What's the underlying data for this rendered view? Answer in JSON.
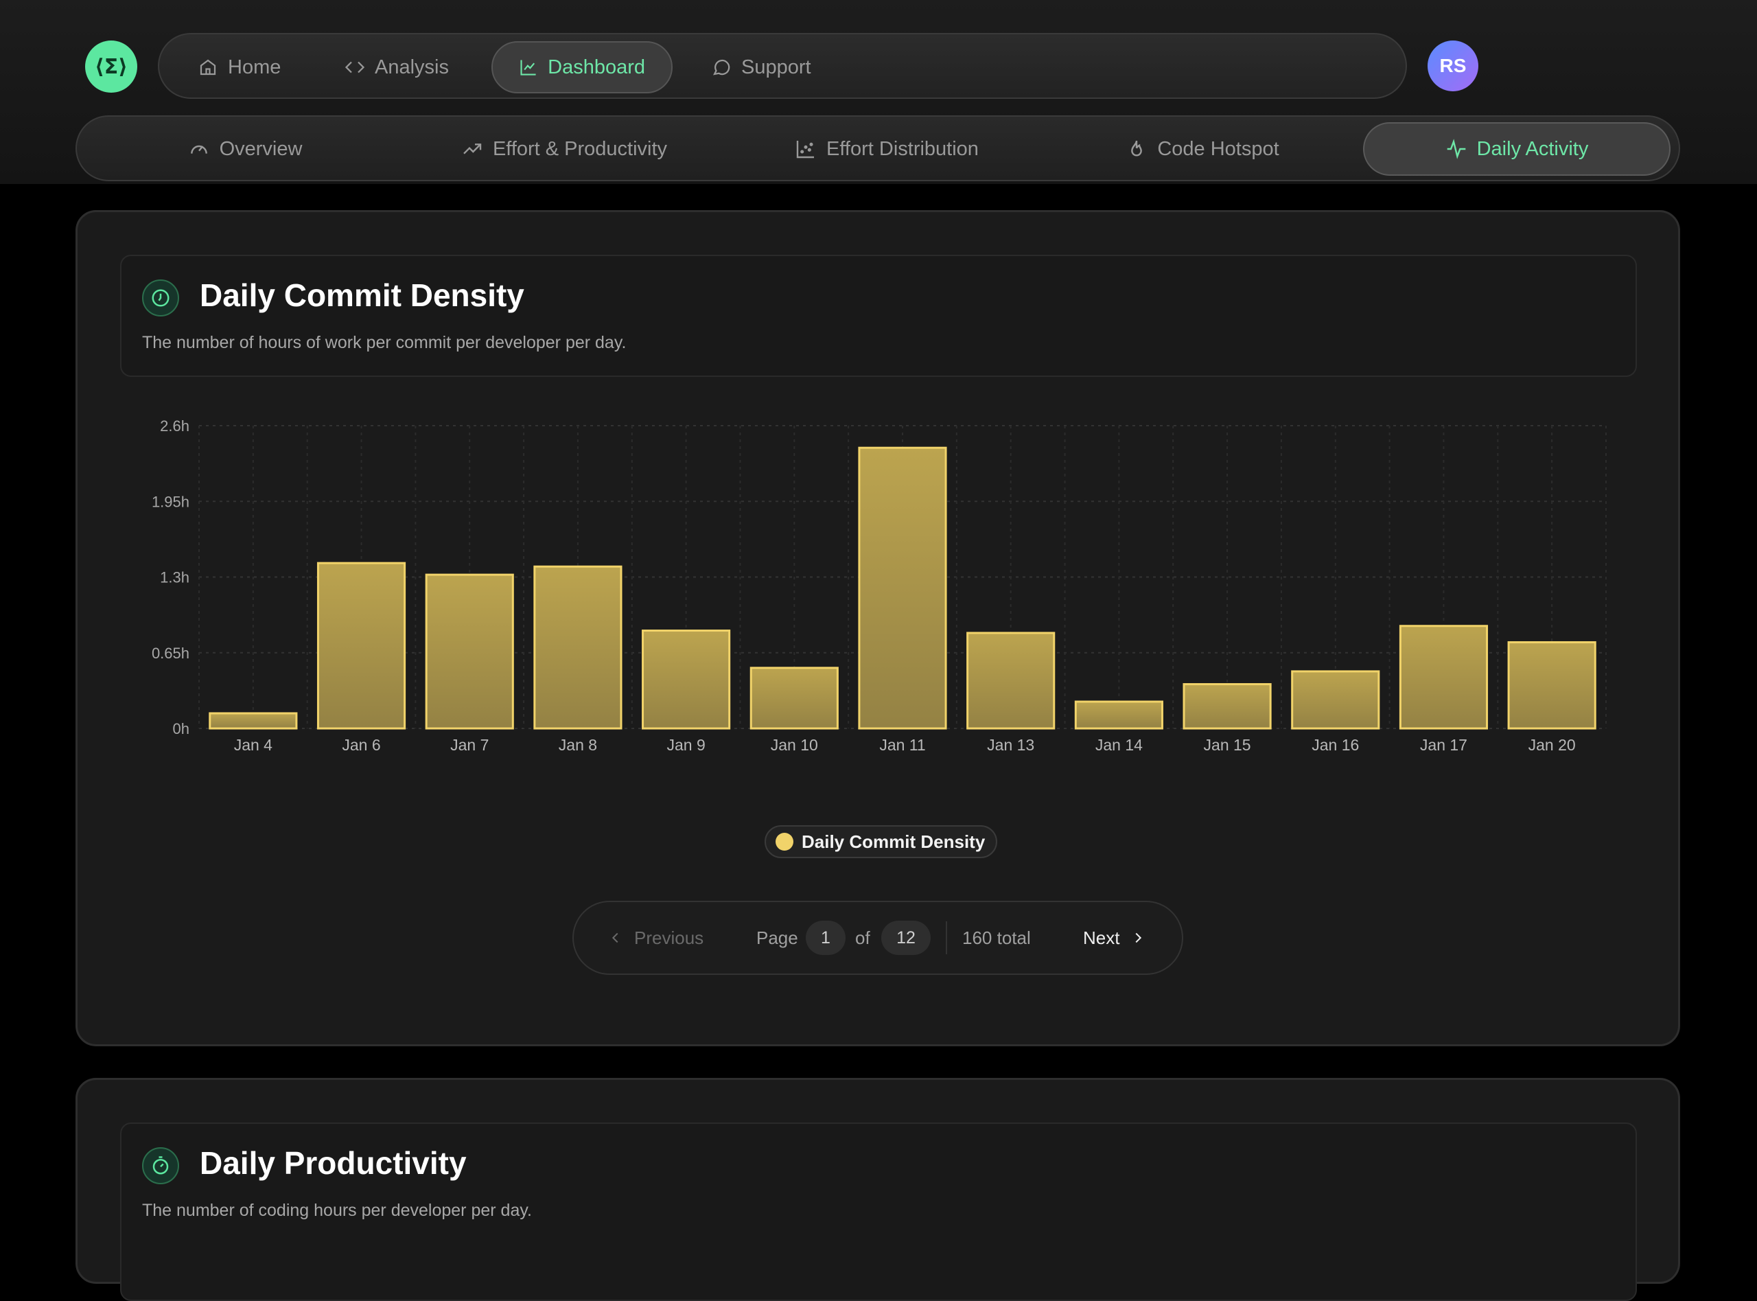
{
  "nav": {
    "logo_glyph": "⟨Σ⟩",
    "items": [
      {
        "label": "Home",
        "icon": "home-icon"
      },
      {
        "label": "Analysis",
        "icon": "code-icon"
      },
      {
        "label": "Dashboard",
        "icon": "chart-icon",
        "active": true
      },
      {
        "label": "Support",
        "icon": "chat-icon"
      }
    ],
    "avatar_initials": "RS"
  },
  "subnav": {
    "items": [
      {
        "label": "Overview",
        "icon": "gauge-icon"
      },
      {
        "label": "Effort & Productivity",
        "icon": "trend-icon"
      },
      {
        "label": "Effort Distribution",
        "icon": "scatter-icon"
      },
      {
        "label": "Code Hotspot",
        "icon": "flame-icon"
      },
      {
        "label": "Daily Activity",
        "icon": "pulse-icon",
        "active": true
      }
    ]
  },
  "card1": {
    "title": "Daily Commit Density",
    "description": "The number of hours of work per commit per developer per day."
  },
  "chart_data": {
    "type": "bar",
    "categories": [
      "Jan 4",
      "Jan 6",
      "Jan 7",
      "Jan 8",
      "Jan 9",
      "Jan 10",
      "Jan 11",
      "Jan 13",
      "Jan 14",
      "Jan 15",
      "Jan 16",
      "Jan 17",
      "Jan 20"
    ],
    "series": [
      {
        "name": "Daily Commit Density",
        "values": [
          0.13,
          1.42,
          1.32,
          1.39,
          0.84,
          0.52,
          2.41,
          0.82,
          0.23,
          0.38,
          0.49,
          0.88,
          0.74
        ]
      }
    ],
    "yticks": [
      "0h",
      "0.65h",
      "1.3h",
      "1.95h",
      "2.6h"
    ],
    "ylim": [
      0,
      2.6
    ],
    "grid": true,
    "legend_position": "bottom-center",
    "bar_color": "#b9a24c",
    "bar_border": "#f1d36a"
  },
  "pagination": {
    "prev_label": "Previous",
    "page_label": "Page",
    "current_page": "1",
    "of_label": "of",
    "total_pages": "12",
    "total_label": "160 total",
    "next_label": "Next"
  },
  "card2": {
    "title": "Daily Productivity",
    "description": "The number of coding hours per developer per day."
  }
}
